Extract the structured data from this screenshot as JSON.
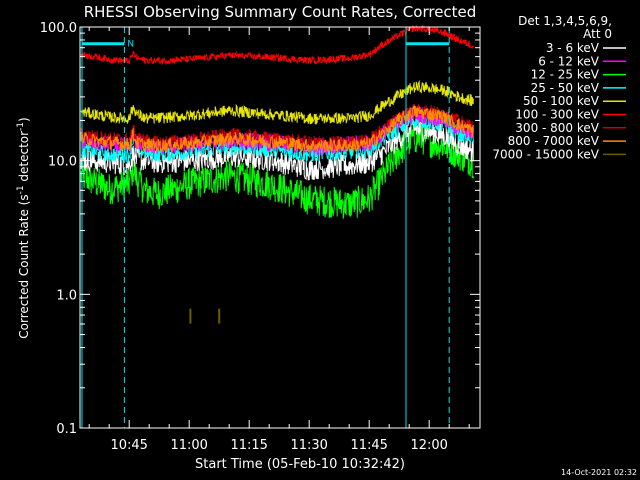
{
  "chart_data": {
    "type": "line",
    "title": "RHESSI Observing Summary Count Rates, Corrected",
    "xlabel": "Start Time (05-Feb-10 10:32:42)",
    "ylabel_main": "Corrected Count Rate (s",
    "ylabel_sup1": "-1",
    "ylabel_mid": " detector",
    "ylabel_sup2": "-1",
    "ylabel_end": ")",
    "yscale": "log",
    "ylim": [
      0.1,
      100.0
    ],
    "y_ticks": [
      {
        "value": 0.1,
        "label": "0.1"
      },
      {
        "value": 1.0,
        "label": "1.0"
      },
      {
        "value": 10.0,
        "label": "10.0"
      },
      {
        "value": 100.0,
        "label": "100.0"
      }
    ],
    "x_ticks": [
      "10:45",
      "11:00",
      "11:15",
      "11:30",
      "11:45",
      "12:00"
    ],
    "x_tick_minutes": [
      45,
      60,
      75,
      90,
      105,
      120
    ],
    "xlim_minutes": [
      32.7,
      132.7
    ],
    "legend_header": [
      "Det 1,3,4,5,6,9,",
      "Att 0"
    ],
    "legend_placement": "right",
    "timestamp": "14-Oct-2021 02:32",
    "flag_label": "N",
    "flag_color": "#00e5ee",
    "series": [
      {
        "name": "3 - 6 keV",
        "color": "#ffffff",
        "x": [
          33,
          40,
          45,
          46,
          47,
          49,
          52,
          60,
          70,
          80,
          90,
          100,
          105,
          108,
          112,
          116,
          119,
          124,
          127,
          131
        ],
        "y": [
          10.0,
          9.5,
          9.2,
          11.0,
          10.0,
          9.8,
          9.5,
          9.8,
          10.5,
          10.0,
          8.5,
          9.0,
          9.5,
          11.0,
          14.0,
          17.0,
          16.5,
          15.0,
          13.0,
          11.5
        ],
        "noise": 0.2
      },
      {
        "name": "6 - 12 keV",
        "color": "#ff00ff",
        "x": [
          33,
          40,
          45,
          46,
          47,
          49,
          52,
          60,
          70,
          80,
          90,
          100,
          105,
          108,
          112,
          116,
          119,
          124,
          127,
          131
        ],
        "y": [
          14.0,
          13.0,
          12.5,
          15.0,
          13.5,
          13.0,
          12.5,
          13.0,
          14.0,
          13.5,
          12.5,
          13.0,
          13.5,
          15.5,
          19.0,
          22.0,
          21.5,
          20.0,
          17.5,
          16.0
        ],
        "noise": 0.15
      },
      {
        "name": "12 - 25 keV",
        "color": "#00ff00",
        "x": [
          33,
          40,
          45,
          46,
          47,
          49,
          52,
          60,
          70,
          80,
          90,
          100,
          105,
          108,
          112,
          116,
          119,
          124,
          127,
          131
        ],
        "y": [
          7.5,
          6.0,
          6.5,
          8.5,
          7.0,
          5.8,
          5.5,
          6.5,
          7.5,
          6.5,
          5.0,
          4.6,
          5.0,
          7.0,
          11.0,
          14.5,
          14.0,
          12.5,
          11.0,
          9.5
        ],
        "noise": 0.28
      },
      {
        "name": "25 - 50 keV",
        "color": "#00ffff",
        "x": [
          33,
          40,
          45,
          46,
          47,
          49,
          52,
          60,
          70,
          80,
          90,
          100,
          105,
          108,
          112,
          116,
          119,
          124,
          127,
          131
        ],
        "y": [
          12.0,
          11.0,
          11.0,
          14.5,
          12.0,
          11.5,
          11.0,
          11.5,
          12.5,
          12.0,
          11.0,
          11.5,
          12.0,
          14.0,
          17.0,
          20.0,
          19.5,
          18.0,
          16.0,
          14.5
        ],
        "noise": 0.14
      },
      {
        "name": "50 - 100 keV",
        "color": "#e6e600",
        "x": [
          33,
          40,
          45,
          46,
          47,
          49,
          52,
          60,
          70,
          80,
          90,
          100,
          105,
          108,
          112,
          116,
          119,
          124,
          127,
          131
        ],
        "y": [
          23.0,
          21.0,
          20.5,
          25.0,
          22.0,
          20.5,
          20.5,
          21.5,
          23.5,
          22.0,
          20.5,
          20.5,
          21.5,
          25.0,
          30.0,
          35.0,
          35.0,
          33.0,
          30.0,
          27.5
        ],
        "noise": 0.1
      },
      {
        "name": "100 - 300 keV",
        "color": "#ff0000",
        "x": [
          33,
          40,
          45,
          46,
          47,
          49,
          52,
          60,
          70,
          80,
          90,
          100,
          105,
          108,
          112,
          116,
          119,
          124,
          127,
          131
        ],
        "y": [
          62.0,
          57.0,
          55.0,
          63.0,
          58.0,
          56.0,
          55.5,
          57.0,
          61.0,
          59.0,
          56.0,
          58.0,
          62.0,
          72.0,
          85.0,
          97.0,
          96.0,
          90.0,
          80.0,
          72.0
        ],
        "noise": 0.06
      },
      {
        "name": "300 - 800 keV",
        "color": "#cc0000",
        "x": [
          33,
          40,
          45,
          46,
          47,
          49,
          52,
          60,
          70,
          80,
          90,
          100,
          105,
          108,
          112,
          116,
          119,
          124,
          127,
          131
        ],
        "y": [
          15.5,
          14.5,
          14.0,
          16.5,
          14.5,
          14.0,
          13.5,
          14.0,
          15.5,
          14.5,
          13.5,
          13.5,
          14.0,
          16.5,
          20.5,
          24.0,
          23.5,
          22.0,
          19.5,
          17.5
        ],
        "noise": 0.12
      },
      {
        "name": "800 - 7000 keV",
        "color": "#ff8c00",
        "x": [
          33,
          40,
          45,
          46,
          47,
          49,
          52,
          60,
          70,
          80,
          90,
          100,
          105,
          108,
          112,
          116,
          119,
          124,
          127,
          131
        ],
        "y": [
          14.5,
          13.5,
          13.0,
          15.5,
          13.5,
          13.0,
          12.8,
          13.2,
          14.5,
          13.8,
          12.8,
          12.8,
          13.2,
          15.5,
          19.5,
          23.0,
          22.5,
          21.0,
          18.5,
          16.5
        ],
        "noise": 0.12
      },
      {
        "name": "7000 - 15000 keV",
        "color": "#6b5a00",
        "points": [
          {
            "x": 60.3,
            "y": 0.67
          },
          {
            "x": 67.5,
            "y": 0.67
          }
        ],
        "noise": 0.0
      }
    ],
    "solid_vlines_minutes": [
      33.2,
      114.2
    ],
    "dashed_vlines_minutes": [
      43.8,
      125.0
    ],
    "flag_segments_minutes": [
      [
        33.2,
        43.8
      ],
      [
        114.2,
        125.0
      ]
    ],
    "flag_y": 75.0
  }
}
